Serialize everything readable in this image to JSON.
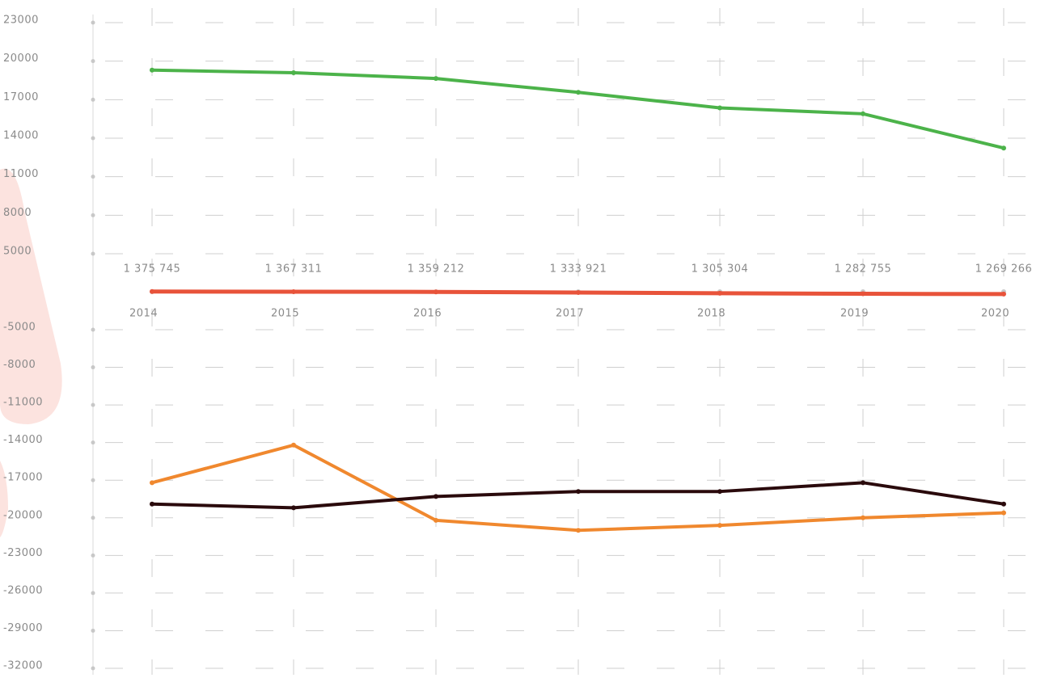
{
  "chart_data": [
    {
      "type": "line",
      "ylim": [
        5000,
        23000
      ],
      "yticks": [
        5000,
        8000,
        11000,
        14000,
        17000,
        20000,
        23000
      ],
      "series": [
        {
          "color": "#4cb34a",
          "values": [
            19300,
            19100,
            18650,
            17570,
            16360,
            15900,
            13230
          ]
        }
      ]
    },
    {
      "type": "line",
      "categories": [
        "2014",
        "2015",
        "2016",
        "2017",
        "2018",
        "2019",
        "2020"
      ],
      "ylim": [
        1200000,
        1400000
      ],
      "series": [
        {
          "color": "#e8533a",
          "values": [
            1375745,
            1367311,
            1359212,
            1333921,
            1305304,
            1282755,
            1269266
          ],
          "value_labels": [
            "1 375 745",
            "1 367 311",
            "1 359 212",
            "1 333 921",
            "1 305 304",
            "1 282 755",
            "1 269 266"
          ]
        }
      ]
    },
    {
      "type": "line",
      "ylim": [
        -32000,
        -5000
      ],
      "yticks": [
        -32000,
        -29000,
        -26000,
        -23000,
        -20000,
        -17000,
        -14000,
        -11000,
        -8000,
        -5000
      ],
      "series": [
        {
          "color": "#f0882e",
          "values": [
            -17200,
            -14200,
            -20200,
            -21000,
            -20600,
            -20000,
            -19600
          ]
        },
        {
          "color": "#2a0a0c",
          "values": [
            -18900,
            -19200,
            -18300,
            -17900,
            -17900,
            -17200,
            -18900
          ]
        }
      ]
    }
  ]
}
